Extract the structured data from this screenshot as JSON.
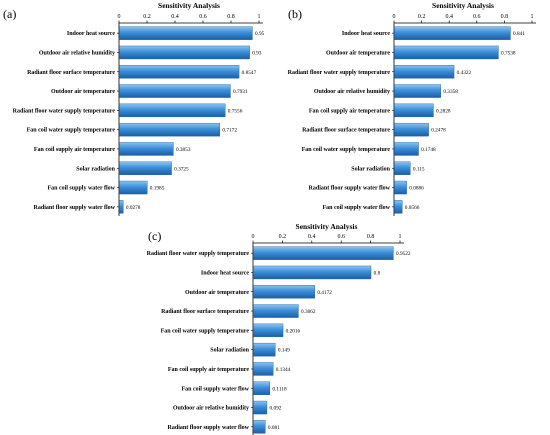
{
  "chart_data": [
    {
      "type": "bar",
      "orientation": "horizontal",
      "panel_label": "(a)",
      "title": "Sensitivity Analysis",
      "xlabel": "",
      "ylabel": "",
      "xlim": [
        0,
        1
      ],
      "ticks": [
        "0",
        "0.2",
        "0.4",
        "0.6",
        "0.8",
        "1"
      ],
      "grid": false,
      "categories": [
        "Indoor heat source",
        "Outdoor air relative humidity",
        "Radiant floor surface temperature",
        "Outdoor air temperature",
        "Radiant floor water supply temperature",
        "Fan coil water supply temperature",
        "Fan coil supply air temperature",
        "Solar radiation",
        "Fan coil supply water flow",
        "Radiant floor supply water flow"
      ],
      "values": [
        0.95,
        0.93,
        0.8547,
        0.7931,
        0.7556,
        0.7172,
        0.3853,
        0.3725,
        0.1985,
        0.0278
      ],
      "value_labels": [
        "0.95",
        "0.93",
        "0.8547",
        "0.7931",
        "0.7556",
        "0.7172",
        "0.3853",
        "0.3725",
        "0.1985",
        "0.0278"
      ],
      "bar_color": "#3c8fd8"
    },
    {
      "type": "bar",
      "orientation": "horizontal",
      "panel_label": "(b)",
      "title": "Sensitivity Analysis",
      "xlabel": "",
      "ylabel": "",
      "xlim": [
        0,
        1
      ],
      "ticks": [
        "0",
        "0.2",
        "0.4",
        "0.6",
        "0.8",
        "1"
      ],
      "grid": false,
      "categories": [
        "Indoor heat source",
        "Outdoor air temperature",
        "Radiant floor water supply temperature",
        "Outdoor air relative humidity",
        "Fan coil supply air temperature",
        "Radiant floor surface temperature",
        "Fan coil water supply temperature",
        "Solar radiation",
        "Radiant floor supply water flow",
        "Fan coil supply water flow"
      ],
      "values": [
        0.841,
        0.7538,
        0.4322,
        0.3358,
        0.2828,
        0.2478,
        0.1748,
        0.115,
        0.0886,
        0.0566
      ],
      "value_labels": [
        "0.841",
        "0.7538",
        "0.4322",
        "0.3358",
        "0.2828",
        "0.2478",
        "0.1748",
        "0.115",
        "0.0886",
        "0.0566"
      ],
      "bar_color": "#3c8fd8"
    },
    {
      "type": "bar",
      "orientation": "horizontal",
      "panel_label": "(c)",
      "title": "Sensitivity Analysis",
      "xlabel": "",
      "ylabel": "",
      "xlim": [
        0,
        1
      ],
      "ticks": [
        "0",
        "0.2",
        "0.4",
        "0.6",
        "0.8",
        "1"
      ],
      "grid": false,
      "categories": [
        "Radiant floor water supply temperature",
        "Indoor heat source",
        "Outdoor air temperature",
        "Radiant floor surface temperature",
        "Fan coil water supply temperature",
        "Solar radiation",
        "Fan coil supply air temperature",
        "Fan coil supply water flow",
        "Outdoor air relative humidity",
        "Radiant floor supply water flow"
      ],
      "values": [
        0.9522,
        0.8,
        0.4172,
        0.3062,
        0.2016,
        0.149,
        0.1344,
        0.1118,
        0.092,
        0.081
      ],
      "value_labels": [
        "0.9522",
        "0.8",
        "0.4172",
        "0.3062",
        "0.2016",
        "0.149",
        "0.1344",
        "0.1118",
        "0.092",
        "0.081"
      ],
      "bar_color": "#3c8fd8"
    }
  ]
}
